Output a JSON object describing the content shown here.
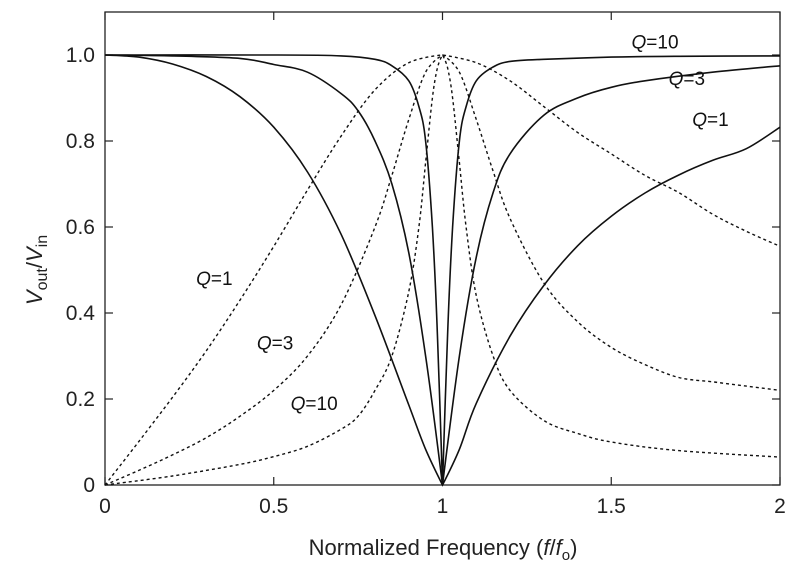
{
  "chart_data": {
    "type": "line",
    "x_range": [
      0,
      2
    ],
    "y_range": [
      0,
      1.05
    ],
    "x_ticks": [
      0,
      0.5,
      1,
      1.5,
      2
    ],
    "x_tick_labels": [
      "0",
      "0.5",
      "1",
      "1.5",
      "2"
    ],
    "y_ticks": [
      0,
      0.2,
      0.4,
      0.6,
      0.8,
      1.0
    ],
    "y_tick_labels": [
      "0",
      "0.2",
      "0.4",
      "0.6",
      "0.8",
      "1.0"
    ],
    "xlabel": {
      "prefix": "Normalized Frequency (",
      "f": "f",
      "slash": "/",
      "f0": "f",
      "f0_sub": "o",
      "suffix": ")"
    },
    "ylabel": {
      "v1": "V",
      "v1_sub": "out",
      "slash": "/",
      "v2": "V",
      "v2_sub": "in"
    },
    "grid": false,
    "legend": "none",
    "series": [
      {
        "style": "solid",
        "q": 1,
        "x": [
          0,
          0.1,
          0.2,
          0.3,
          0.4,
          0.5,
          0.6,
          0.7,
          0.8,
          0.9,
          0.95,
          1.0,
          1.05,
          1.1,
          1.2,
          1.3,
          1.4,
          1.5,
          1.6,
          1.7,
          1.8,
          1.9,
          2.0
        ],
        "y": [
          1.0,
          0.995,
          0.979,
          0.95,
          0.903,
          0.832,
          0.728,
          0.582,
          0.394,
          0.186,
          0.083,
          0.0,
          0.083,
          0.19,
          0.346,
          0.464,
          0.556,
          0.625,
          0.679,
          0.721,
          0.755,
          0.782,
          0.832
        ]
      },
      {
        "style": "solid",
        "q": 3,
        "x": [
          0,
          0.2,
          0.4,
          0.5,
          0.6,
          0.7,
          0.75,
          0.8,
          0.85,
          0.9,
          0.95,
          1.0,
          1.05,
          1.1,
          1.15,
          1.2,
          1.3,
          1.4,
          1.5,
          1.6,
          1.8,
          2.0
        ],
        "y": [
          1.0,
          0.998,
          0.992,
          0.978,
          0.96,
          0.91,
          0.87,
          0.8,
          0.7,
          0.54,
          0.3,
          0.0,
          0.3,
          0.53,
          0.68,
          0.77,
          0.86,
          0.9,
          0.925,
          0.94,
          0.96,
          0.975
        ]
      },
      {
        "style": "solid",
        "q": 10,
        "x": [
          0,
          0.5,
          0.7,
          0.8,
          0.85,
          0.9,
          0.93,
          0.95,
          0.97,
          0.985,
          1.0,
          1.015,
          1.03,
          1.05,
          1.07,
          1.1,
          1.15,
          1.2,
          1.3,
          1.5,
          1.7,
          2.0
        ],
        "y": [
          1.0,
          1.0,
          0.998,
          0.99,
          0.975,
          0.94,
          0.88,
          0.8,
          0.6,
          0.35,
          0.0,
          0.35,
          0.6,
          0.8,
          0.88,
          0.94,
          0.972,
          0.985,
          0.99,
          0.995,
          0.997,
          0.998
        ]
      },
      {
        "style": "dotted",
        "q": 1,
        "x": [
          0,
          0.1,
          0.2,
          0.3,
          0.4,
          0.5,
          0.6,
          0.7,
          0.8,
          0.9,
          1.0,
          1.1,
          1.2,
          1.3,
          1.4,
          1.5,
          1.6,
          1.7,
          1.8,
          1.9,
          2.0
        ],
        "y": [
          0,
          0.101,
          0.204,
          0.312,
          0.43,
          0.555,
          0.686,
          0.812,
          0.919,
          0.982,
          1.0,
          0.982,
          0.94,
          0.88,
          0.82,
          0.77,
          0.72,
          0.68,
          0.63,
          0.59,
          0.555
        ]
      },
      {
        "style": "dotted",
        "q": 3,
        "x": [
          0,
          0.1,
          0.2,
          0.3,
          0.4,
          0.5,
          0.6,
          0.7,
          0.8,
          0.85,
          0.9,
          0.95,
          1.0,
          1.05,
          1.1,
          1.15,
          1.2,
          1.3,
          1.4,
          1.5,
          1.6,
          1.7,
          1.8,
          1.9,
          2.0
        ],
        "y": [
          0,
          0.034,
          0.07,
          0.11,
          0.16,
          0.22,
          0.3,
          0.42,
          0.6,
          0.72,
          0.85,
          0.96,
          1.0,
          0.96,
          0.85,
          0.73,
          0.62,
          0.47,
          0.38,
          0.32,
          0.28,
          0.25,
          0.24,
          0.23,
          0.22
        ]
      },
      {
        "style": "dotted",
        "q": 10,
        "x": [
          0,
          0.2,
          0.4,
          0.5,
          0.6,
          0.7,
          0.75,
          0.8,
          0.85,
          0.9,
          0.93,
          0.95,
          0.97,
          0.985,
          1.0,
          1.015,
          1.03,
          1.05,
          1.07,
          1.1,
          1.15,
          1.2,
          1.3,
          1.4,
          1.5,
          1.7,
          2.0
        ],
        "y": [
          0,
          0.021,
          0.048,
          0.066,
          0.09,
          0.13,
          0.16,
          0.22,
          0.3,
          0.45,
          0.6,
          0.75,
          0.9,
          0.97,
          1.0,
          0.97,
          0.9,
          0.75,
          0.6,
          0.44,
          0.3,
          0.22,
          0.15,
          0.12,
          0.1,
          0.08,
          0.065
        ]
      }
    ],
    "annotations": [
      {
        "name": "q10-solid",
        "q": "Q",
        "eq": "=10",
        "x": 1.56,
        "y": 1.015
      },
      {
        "name": "q3-solid",
        "q": "Q",
        "eq": "=3",
        "x": 1.67,
        "y": 0.93
      },
      {
        "name": "q1-solid",
        "q": "Q",
        "eq": "=1",
        "x": 1.74,
        "y": 0.835
      },
      {
        "name": "q1-dotted",
        "q": "Q",
        "eq": "=1",
        "x": 0.27,
        "y": 0.465
      },
      {
        "name": "q3-dotted",
        "q": "Q",
        "eq": "=3",
        "x": 0.45,
        "y": 0.315
      },
      {
        "name": "q10-dotted",
        "q": "Q",
        "eq": "=10",
        "x": 0.55,
        "y": 0.175
      }
    ]
  }
}
